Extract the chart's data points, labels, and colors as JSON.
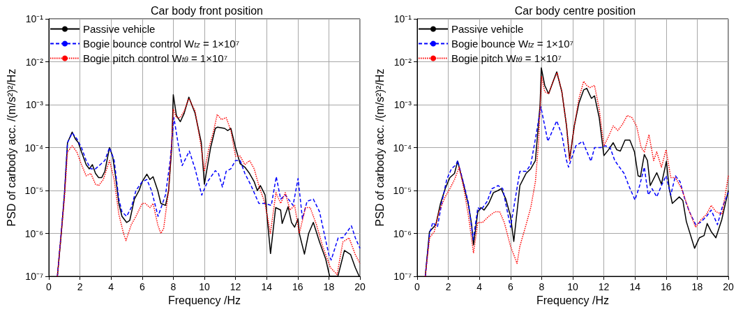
{
  "chart_data": [
    {
      "type": "line",
      "title": "Car body front position",
      "xlabel": "Frequency /Hz",
      "ylabel": "PSD of carbody acc. /(m/s²)²/Hz",
      "log": "y",
      "grid": true,
      "legend": "top left",
      "xlim": [
        0,
        20
      ],
      "xticks": [
        0,
        2,
        4,
        6,
        8,
        10,
        12,
        14,
        16,
        18,
        20
      ],
      "ylim": [
        1e-07,
        0.1
      ],
      "yticks": [
        {
          "value": 1e-07,
          "label": "10⁻⁷"
        },
        {
          "value": 1e-06,
          "label": "10⁻⁶"
        },
        {
          "value": 1e-05,
          "label": "10⁻⁵"
        },
        {
          "value": 0.0001,
          "label": "10⁻⁴"
        },
        {
          "value": 0.001,
          "label": "10⁻³"
        },
        {
          "value": 0.01,
          "label": "10⁻²"
        },
        {
          "value": 0.1,
          "label": "10⁻¹"
        }
      ],
      "series": [
        {
          "name": "Passive vehicle",
          "color": "#000000",
          "line_style": "solid",
          "x": [
            0.55,
            0.8,
            1.0,
            1.2,
            1.5,
            1.7,
            1.9,
            2.1,
            2.4,
            2.6,
            2.8,
            3.0,
            3.2,
            3.4,
            3.6,
            3.9,
            4.1,
            4.3,
            4.5,
            4.7,
            5.0,
            5.2,
            5.5,
            5.8,
            6.0,
            6.3,
            6.5,
            6.7,
            7.0,
            7.2,
            7.5,
            7.7,
            7.9,
            8.0,
            8.2,
            8.45,
            8.7,
            9.0,
            9.4,
            9.8,
            10.0,
            10.4,
            10.7,
            10.85,
            11.3,
            11.5,
            11.7,
            12.0,
            12.3,
            12.6,
            12.9,
            13.2,
            13.4,
            13.6,
            13.9,
            14.25,
            14.58,
            14.9,
            15.0,
            15.38,
            15.6,
            15.8,
            16.02,
            16.1,
            16.43,
            16.7,
            17.0,
            17.4,
            17.8,
            18.05,
            18.58,
            19.0,
            19.4,
            19.7,
            19.95
          ],
          "values": [
            1e-07,
            1e-06,
            7.9e-06,
            0.00013,
            0.00023,
            0.00016,
            0.00013,
            7.9e-05,
            4e-05,
            3.2e-05,
            4e-05,
            2.5e-05,
            2e-05,
            2e-05,
            2.8e-05,
            0.0001,
            6.3e-05,
            2e-05,
            5e-06,
            2.5e-06,
            1.8e-06,
            2e-06,
            6.3e-06,
            1e-05,
            1.6e-05,
            2.4e-05,
            1.8e-05,
            2.1e-05,
            1e-05,
            5e-06,
            4.5e-06,
            1e-05,
            0.0001,
            0.0017,
            0.00056,
            0.0004,
            0.00063,
            0.0015,
            0.00063,
            0.00013,
            1.4e-05,
            0.0001,
            0.00028,
            0.0003,
            0.00028,
            0.00025,
            0.00028,
            0.0001,
            4.2e-05,
            3.5e-05,
            2.5e-05,
            1.6e-05,
            1e-05,
            1.3e-05,
            7.9e-06,
            3.4e-07,
            4e-06,
            3.5e-06,
            1.7e-06,
            4.2e-06,
            1.8e-06,
            1.4e-06,
            2.2e-06,
            1e-06,
            3.3e-07,
            1e-06,
            1.8e-06,
            6.3e-07,
            2.5e-07,
            1e-07,
            1e-07,
            4e-07,
            3.2e-07,
            1.6e-07,
            1e-07
          ]
        },
        {
          "name": "Bogie bounce control W$_{tz}$ = 1×10⁷",
          "color": "#0000ff",
          "line_style": "dashed",
          "x": [
            0.55,
            1.0,
            1.2,
            1.5,
            1.8,
            2.1,
            2.4,
            2.7,
            3.0,
            3.3,
            3.6,
            3.9,
            4.2,
            4.5,
            4.7,
            5.0,
            5.3,
            5.6,
            6.0,
            6.3,
            6.6,
            7.02,
            7.5,
            7.8,
            8.04,
            8.3,
            8.57,
            9.03,
            9.4,
            9.83,
            10.2,
            10.7,
            10.9,
            11.16,
            11.4,
            11.7,
            12.0,
            12.3,
            12.6,
            13.0,
            13.5,
            13.9,
            14.3,
            14.62,
            14.9,
            15.2,
            15.4,
            15.7,
            16.02,
            16.3,
            16.6,
            17.0,
            17.4,
            17.7,
            18.0,
            18.15,
            18.6,
            18.9,
            19.45,
            19.7,
            20.0
          ],
          "values": [
            1e-07,
            7.9e-06,
            0.00013,
            0.00022,
            0.00016,
            0.0001,
            5e-05,
            3.2e-05,
            3.2e-05,
            4e-05,
            5e-05,
            0.0001,
            5e-05,
            6.3e-06,
            3.2e-06,
            2.5e-06,
            4e-06,
            1e-05,
            1.6e-05,
            1.8e-05,
            1e-05,
            2.5e-06,
            7.9e-06,
            5e-05,
            0.0005,
            0.00013,
            3.8e-05,
            8.3e-05,
            3.2e-05,
            7.8e-06,
            1.6e-05,
            2.9e-05,
            2.5e-05,
            1.2e-05,
            2.8e-05,
            3.2e-05,
            5e-05,
            5e-05,
            2.5e-05,
            1.3e-05,
            5e-06,
            5e-06,
            4.5e-06,
            2.1e-05,
            6.3e-06,
            7.9e-06,
            6.3e-06,
            4.5e-06,
            1.9e-05,
            2.2e-06,
            5.6e-06,
            6.3e-06,
            3.2e-06,
            1e-06,
            3.2e-07,
            2.4e-07,
            7.9e-07,
            7.9e-07,
            1.5e-06,
            7.9e-07,
            4.5e-07
          ]
        },
        {
          "name": "Bogie pitch control W$_{tθ}$ = 1×10⁷",
          "color": "#ff0000",
          "line_style": "dotted",
          "x": [
            0.55,
            1.0,
            1.2,
            1.5,
            1.8,
            2.1,
            2.4,
            2.7,
            3.0,
            3.2,
            3.5,
            3.9,
            4.2,
            4.5,
            4.8,
            4.96,
            5.3,
            5.6,
            6.0,
            6.2,
            6.5,
            6.7,
            7.0,
            7.2,
            7.38,
            7.7,
            7.9,
            8.0,
            8.2,
            8.45,
            8.7,
            9.0,
            9.4,
            9.8,
            10.0,
            10.3,
            10.6,
            10.82,
            11.1,
            11.4,
            11.7,
            12.0,
            12.3,
            12.6,
            12.9,
            13.2,
            13.5,
            13.9,
            14.24,
            14.6,
            14.9,
            15.2,
            15.5,
            15.8,
            16.1,
            16.5,
            16.8,
            17.2,
            17.6,
            18.1,
            18.53,
            18.9,
            19.3,
            19.7,
            20.0
          ],
          "values": [
            1e-07,
            6.3e-06,
            7.9e-05,
            0.00011,
            7.9e-05,
            4e-05,
            2.2e-05,
            2.5e-05,
            1.4e-05,
            1.3e-05,
            1.8e-05,
            5e-05,
            1.8e-05,
            2.8e-06,
            1e-06,
            6.8e-07,
            1.6e-06,
            2.5e-06,
            5e-06,
            5e-06,
            4e-06,
            5e-06,
            1.6e-06,
            1e-06,
            1.3e-06,
            1e-05,
            0.00013,
            0.00079,
            0.0005,
            0.0005,
            0.00071,
            0.0014,
            0.00071,
            0.0001,
            2.8e-05,
            0.0001,
            0.00025,
            0.00059,
            0.00045,
            0.0005,
            0.00025,
            6.3e-05,
            6.3e-05,
            4e-05,
            5e-05,
            3.2e-05,
            1.3e-05,
            5e-06,
            1e-06,
            8.9e-06,
            5e-06,
            8.9e-06,
            3.5e-06,
            4.5e-06,
            1e-06,
            4e-06,
            4e-06,
            1.6e-06,
            5e-07,
            1.6e-07,
            1.1e-07,
            6.3e-07,
            7.9e-07,
            3.2e-07,
            2e-07
          ]
        }
      ]
    },
    {
      "type": "line",
      "title": "Car body centre position",
      "xlabel": "Frequency /Hz",
      "ylabel": "PSD of carbody acc. /(m/s²)²/Hz",
      "log": "y",
      "grid": true,
      "legend": "top left",
      "xlim": [
        0,
        20
      ],
      "xticks": [
        0,
        2,
        4,
        6,
        8,
        10,
        12,
        14,
        16,
        18,
        20
      ],
      "ylim": [
        1e-07,
        0.1
      ],
      "yticks": [
        {
          "value": 1e-07,
          "label": "10⁻⁷"
        },
        {
          "value": 1e-06,
          "label": "10⁻⁶"
        },
        {
          "value": 1e-05,
          "label": "10⁻⁵"
        },
        {
          "value": 0.0001,
          "label": "10⁻⁴"
        },
        {
          "value": 0.001,
          "label": "10⁻³"
        },
        {
          "value": 0.01,
          "label": "10⁻²"
        },
        {
          "value": 0.1,
          "label": "10⁻¹"
        }
      ],
      "series": [
        {
          "name": "Passive vehicle",
          "color": "#000000",
          "line_style": "solid",
          "x": [
            0.52,
            0.79,
            1.2,
            1.5,
            1.8,
            2.1,
            2.4,
            2.6,
            3.0,
            3.3,
            3.5,
            3.62,
            3.9,
            4.1,
            4.3,
            4.6,
            4.9,
            5.2,
            5.4,
            5.7,
            6.0,
            6.21,
            6.6,
            7.0,
            7.3,
            7.6,
            7.9,
            7.98,
            8.2,
            8.45,
            8.7,
            8.97,
            9.3,
            9.6,
            9.8,
            10.1,
            10.4,
            10.7,
            10.9,
            11.2,
            11.4,
            11.7,
            12.0,
            12.3,
            12.6,
            12.83,
            13.06,
            13.36,
            13.67,
            13.97,
            14.2,
            14.35,
            14.6,
            14.8,
            14.98,
            15.4,
            15.7,
            16.02,
            16.2,
            16.4,
            16.85,
            17.08,
            17.3,
            17.83,
            18.14,
            18.44,
            18.64,
            18.9,
            19.2,
            19.58,
            20.0
          ],
          "values": [
            1e-07,
            1.1e-06,
            1.6e-06,
            5e-06,
            1.1e-05,
            2e-05,
            2.5e-05,
            4.8e-05,
            1.3e-05,
            4.5e-06,
            1.6e-06,
            5.4e-07,
            3.2e-06,
            4e-06,
            3.5e-06,
            5e-06,
            8.9e-06,
            1e-05,
            1.1e-05,
            6.3e-06,
            2.5e-06,
            6.5e-07,
            1.3e-05,
            2.5e-05,
            3.2e-05,
            5e-05,
            0.001,
            0.0072,
            0.0028,
            0.0018,
            0.0032,
            0.0058,
            0.002,
            0.00032,
            5.4e-05,
            0.00032,
            0.0011,
            0.0022,
            0.0024,
            0.0014,
            0.0016,
            0.0005,
            6.5e-05,
            8.9e-05,
            0.00013,
            8.9e-05,
            8.3e-05,
            0.00015,
            0.00015,
            7.9e-05,
            2.2e-05,
            2.1e-05,
            6.9e-05,
            5e-05,
            1.3e-05,
            2.6e-05,
            1.4e-05,
            4.8e-05,
            1.1e-05,
            5e-06,
            7.1e-06,
            5.8e-06,
            1.9e-06,
            4.5e-07,
            7.9e-07,
            8.9e-07,
            1.7e-06,
            1.1e-06,
            7.9e-07,
            2.1e-06,
            1e-05
          ]
        },
        {
          "name": "Bogie bounce W$_{tz}$ = 1×10⁷",
          "color": "#0000ff",
          "line_style": "dashed",
          "x": [
            0.52,
            0.8,
            1.0,
            1.3,
            1.6,
            1.9,
            2.2,
            2.5,
            2.6,
            3.0,
            3.3,
            3.6,
            3.9,
            4.1,
            4.5,
            4.8,
            5.2,
            5.5,
            5.8,
            6.0,
            6.3,
            6.6,
            7.0,
            7.3,
            7.6,
            7.95,
            8.4,
            8.97,
            9.3,
            9.6,
            9.73,
            10.2,
            10.64,
            10.8,
            11.17,
            11.4,
            11.8,
            12.1,
            12.4,
            12.7,
            13.0,
            13.3,
            13.6,
            14.0,
            14.3,
            14.6,
            14.85,
            15.1,
            15.4,
            15.7,
            16.0,
            16.3,
            16.6,
            16.9,
            17.2,
            17.5,
            17.9,
            18.2,
            18.6,
            18.9,
            19.3,
            19.6,
            20.0
          ],
          "values": [
            1e-07,
            1e-06,
            1.8e-06,
            1.4e-06,
            5.6e-06,
            1.8e-05,
            3.2e-05,
            4e-05,
            5e-05,
            1.4e-05,
            5e-06,
            7.1e-07,
            4e-06,
            3.5e-06,
            5.6e-06,
            1.1e-05,
            1.3e-05,
            1.1e-05,
            3.2e-06,
            1.4e-06,
            6.3e-06,
            2.8e-05,
            2.8e-05,
            4e-05,
            0.00016,
            0.00089,
            0.00014,
            0.00042,
            0.0002,
            5e-05,
            3.5e-05,
            0.00011,
            0.00014,
            0.0001,
            4.8e-05,
            0.0001,
            0.0001,
            0.00011,
            0.0001,
            5e-05,
            3.5e-05,
            2.5e-05,
            1.3e-05,
            6e-06,
            1.3e-05,
            3.5e-05,
            7.9e-06,
            1.1e-05,
            7.1e-06,
            1.3e-05,
            2.2e-05,
            7.9e-06,
            2.2e-05,
            1.6e-05,
            6.3e-06,
            3.2e-06,
            1.6e-06,
            1.8e-06,
            2.5e-06,
            3.5e-06,
            1.6e-06,
            4e-06,
            8.9e-06
          ]
        },
        {
          "name": "Bogie pitch W$_{tθ}$ = 1×10⁷",
          "color": "#ff0000",
          "line_style": "dotted",
          "x": [
            0.52,
            0.8,
            1.1,
            1.4,
            1.8,
            2.1,
            2.4,
            2.7,
            3.0,
            3.3,
            3.62,
            3.9,
            4.2,
            4.6,
            5.0,
            5.3,
            5.6,
            6.0,
            6.42,
            6.6,
            7.0,
            7.3,
            7.6,
            7.8,
            8.0,
            8.2,
            8.45,
            8.7,
            9.0,
            9.3,
            9.6,
            9.8,
            10.1,
            10.4,
            10.7,
            10.9,
            11.1,
            11.4,
            11.7,
            12.0,
            12.3,
            12.6,
            12.9,
            13.2,
            13.5,
            13.8,
            14.1,
            14.4,
            14.6,
            14.9,
            15.2,
            15.4,
            15.7,
            16.0,
            16.3,
            16.6,
            17.0,
            17.5,
            17.9,
            18.2,
            18.6,
            18.9,
            19.2,
            19.6,
            20.0
          ],
          "values": [
            1e-07,
            7.9e-07,
            1.1e-06,
            3.2e-06,
            7.1e-06,
            1.1e-05,
            1.8e-05,
            3.5e-05,
            1.1e-05,
            2.5e-06,
            3.5e-07,
            1.8e-06,
            1.8e-06,
            2.5e-06,
            3.2e-06,
            3.2e-06,
            1.8e-06,
            5e-07,
            2e-07,
            5e-07,
            1.6e-06,
            4e-06,
            1.6e-05,
            0.00013,
            0.0045,
            0.002,
            0.0018,
            0.0032,
            0.0056,
            0.002,
            0.00032,
            5e-05,
            0.00032,
            0.0014,
            0.0035,
            0.0028,
            0.0025,
            0.0028,
            0.00079,
            0.00011,
            0.00018,
            0.00032,
            0.00025,
            0.00035,
            0.00056,
            0.0005,
            0.00032,
            0.0001,
            7.9e-05,
            0.0002,
            5e-05,
            7.9e-05,
            3.5e-05,
            8.9e-05,
            2e-05,
            2e-05,
            1.1e-05,
            3.2e-06,
            1.4e-06,
            2e-06,
            2.8e-06,
            4.5e-06,
            3.2e-06,
            2.8e-06,
            2.2e-05
          ]
        }
      ]
    }
  ]
}
